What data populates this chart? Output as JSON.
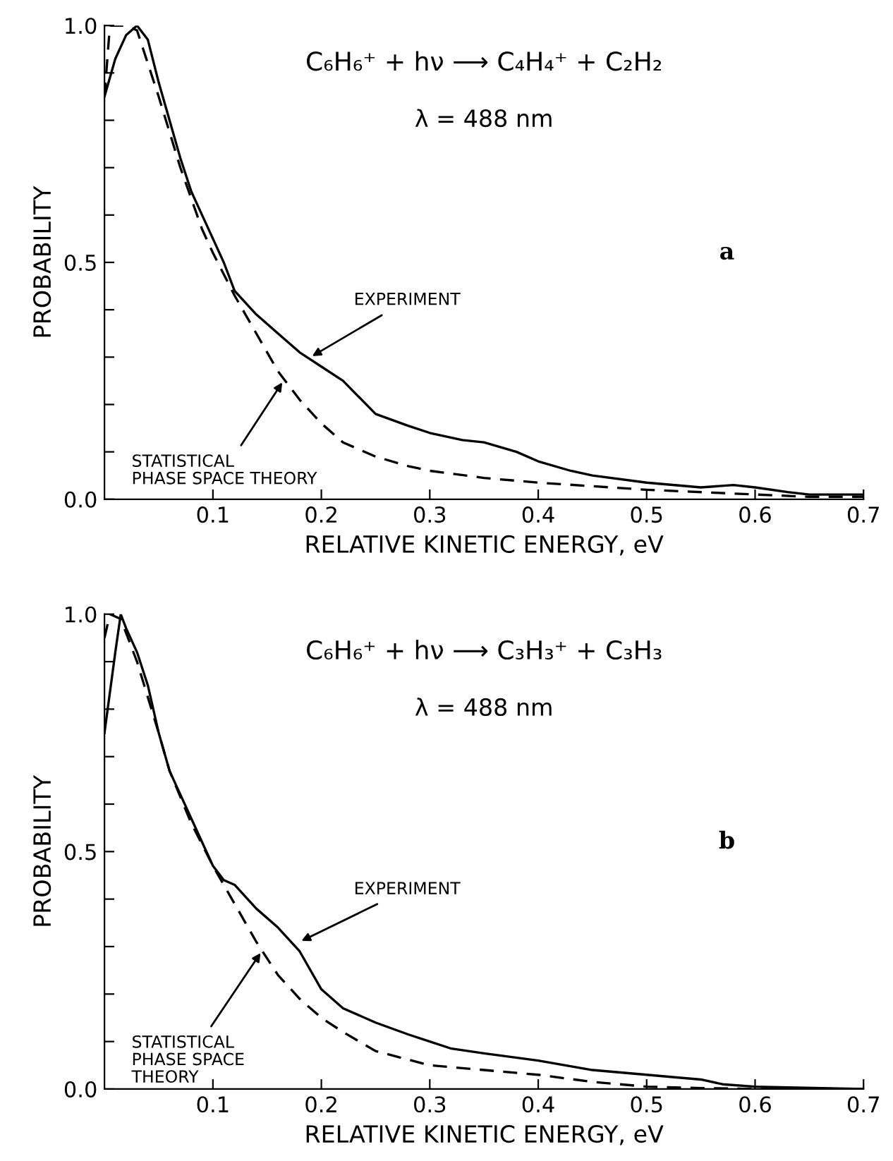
{
  "chart_data": [
    {
      "type": "line",
      "xlabel": "RELATIVE KINETIC ENERGY, eV",
      "ylabel": "PROBABILITY",
      "xlim": [
        0,
        0.7
      ],
      "ylim": [
        0,
        1.0
      ],
      "xticks": [
        0.1,
        0.2,
        0.3,
        0.4,
        0.5,
        0.6,
        0.7
      ],
      "yticks": [
        {
          "value": 0,
          "label": "0.0"
        },
        {
          "value": 0.1,
          "label": null
        },
        {
          "value": 0.2,
          "label": null
        },
        {
          "value": 0.3,
          "label": null
        },
        {
          "value": 0.4,
          "label": null
        },
        {
          "value": 0.5,
          "label": "0.5"
        },
        {
          "value": 0.6,
          "label": null
        },
        {
          "value": 0.7,
          "label": null
        },
        {
          "value": 0.8,
          "label": null
        },
        {
          "value": 0.9,
          "label": null
        },
        {
          "value": 1.0,
          "label": "1.0"
        }
      ],
      "grid": false,
      "legend": false,
      "series": [
        {
          "color": "#000000",
          "line_style": "solid",
          "x": [
            0,
            0.01,
            0.02,
            0.03,
            0.04,
            0.05,
            0.06,
            0.07,
            0.08,
            0.09,
            0.1,
            0.11,
            0.12,
            0.14,
            0.16,
            0.18,
            0.2,
            0.22,
            0.25,
            0.28,
            0.3,
            0.33,
            0.35,
            0.38,
            0.4,
            0.43,
            0.45,
            0.5,
            0.55,
            0.58,
            0.6,
            0.63,
            0.65,
            0.7
          ],
          "values": [
            0.85,
            0.93,
            0.98,
            1.0,
            0.97,
            0.88,
            0.8,
            0.72,
            0.65,
            0.6,
            0.55,
            0.5,
            0.44,
            0.39,
            0.35,
            0.31,
            0.28,
            0.25,
            0.18,
            0.155,
            0.14,
            0.125,
            0.12,
            0.1,
            0.08,
            0.06,
            0.05,
            0.035,
            0.025,
            0.03,
            0.025,
            0.015,
            0.01,
            0.01
          ]
        },
        {
          "color": "#000000",
          "line_style": "dashed",
          "x": [
            0,
            0.005,
            0.02,
            0.03,
            0.05,
            0.07,
            0.09,
            0.1,
            0.12,
            0.14,
            0.16,
            0.18,
            0.2,
            0.22,
            0.25,
            0.28,
            0.3,
            0.35,
            0.4,
            0.5,
            0.6,
            0.65,
            0.7
          ],
          "values": [
            0.85,
            1.0,
            1.0,
            0.99,
            0.85,
            0.7,
            0.57,
            0.52,
            0.43,
            0.35,
            0.27,
            0.21,
            0.16,
            0.12,
            0.09,
            0.07,
            0.06,
            0.045,
            0.035,
            0.02,
            0.01,
            0.005,
            0.005
          ]
        }
      ],
      "annotations": [
        "C₆H₆⁺ + hν ⟶ C₄H₄⁺ + C₂H₂",
        "λ = 488 nm",
        "a",
        {
          "text": "EXPERIMENT",
          "x": 0.19,
          "y": 0.3
        },
        {
          "text": "STATISTICAL\nPHASE SPACE THEORY",
          "x": 0.165,
          "y": 0.25
        }
      ]
    },
    {
      "type": "line",
      "xlabel": "RELATIVE KINETIC ENERGY, eV",
      "ylabel": "PROBABILITY",
      "xlim": [
        0,
        0.7
      ],
      "ylim": [
        0,
        1.0
      ],
      "xticks": [
        0.1,
        0.2,
        0.3,
        0.4,
        0.5,
        0.6,
        0.7
      ],
      "yticks": [
        {
          "value": 0,
          "label": "0.0"
        },
        {
          "value": 0.1,
          "label": null
        },
        {
          "value": 0.2,
          "label": null
        },
        {
          "value": 0.3,
          "label": null
        },
        {
          "value": 0.4,
          "label": null
        },
        {
          "value": 0.5,
          "label": "0.5"
        },
        {
          "value": 0.6,
          "label": null
        },
        {
          "value": 0.7,
          "label": null
        },
        {
          "value": 0.8,
          "label": null
        },
        {
          "value": 0.9,
          "label": null
        },
        {
          "value": 1.0,
          "label": "1.0"
        }
      ],
      "grid": false,
      "legend": false,
      "series": [
        {
          "color": "#000000",
          "line_style": "solid",
          "x": [
            0,
            0.01,
            0.015,
            0.02,
            0.03,
            0.04,
            0.05,
            0.06,
            0.08,
            0.1,
            0.11,
            0.12,
            0.14,
            0.16,
            0.18,
            0.2,
            0.22,
            0.25,
            0.28,
            0.3,
            0.32,
            0.35,
            0.4,
            0.45,
            0.5,
            0.55,
            0.57,
            0.6,
            0.7
          ],
          "values": [
            0.75,
            0.92,
            1.0,
            0.97,
            0.92,
            0.85,
            0.75,
            0.67,
            0.57,
            0.47,
            0.44,
            0.43,
            0.38,
            0.34,
            0.29,
            0.21,
            0.17,
            0.14,
            0.115,
            0.1,
            0.085,
            0.075,
            0.06,
            0.04,
            0.03,
            0.02,
            0.01,
            0.005,
            0.0
          ]
        },
        {
          "color": "#000000",
          "line_style": "dashed",
          "x": [
            0,
            0.005,
            0.015,
            0.03,
            0.05,
            0.06,
            0.08,
            0.1,
            0.12,
            0.14,
            0.16,
            0.18,
            0.2,
            0.22,
            0.25,
            0.3,
            0.35,
            0.4,
            0.45,
            0.5,
            0.55,
            0.6,
            0.7
          ],
          "values": [
            0.95,
            1.0,
            0.99,
            0.9,
            0.75,
            0.67,
            0.56,
            0.47,
            0.39,
            0.31,
            0.24,
            0.19,
            0.15,
            0.12,
            0.08,
            0.05,
            0.04,
            0.03,
            0.015,
            0.005,
            0.002,
            0.0,
            0.0
          ]
        }
      ],
      "annotations": [
        "C₆H₆⁺ + hν ⟶ C₃H₃⁺ + C₃H₃",
        "λ = 488 nm",
        "b",
        {
          "text": "EXPERIMENT",
          "x": 0.18,
          "y": 0.31
        },
        {
          "text": "STATISTICAL\nPHASE SPACE\nTHEORY",
          "x": 0.145,
          "y": 0.29
        }
      ]
    }
  ]
}
